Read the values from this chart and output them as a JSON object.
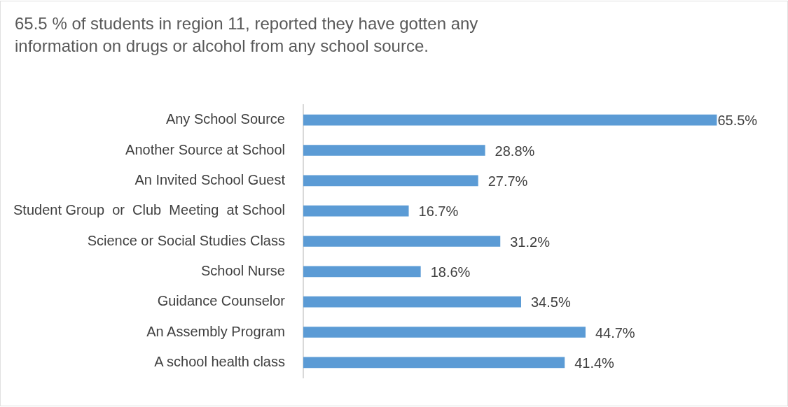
{
  "chart_data": {
    "type": "bar",
    "orientation": "horizontal",
    "title": "65.5 % of students in region 11, reported they have gotten any information on drugs or alcohol from any school source.",
    "categories": [
      "Any School Source",
      "Another Source at School",
      "An Invited School Guest",
      "Student Group  or  Club  Meeting  at School",
      "Science or Social Studies Class",
      "School Nurse",
      "Guidance Counselor",
      "An Assembly Program",
      "A school health class"
    ],
    "values": [
      65.5,
      28.8,
      27.7,
      16.7,
      31.2,
      18.6,
      34.5,
      44.7,
      41.4
    ],
    "value_labels": [
      "65.5%",
      "28.8%",
      "27.7%",
      "16.7%",
      "31.2%",
      "18.6%",
      "34.5%",
      "44.7%",
      "41.4%"
    ],
    "color": "#5b9bd5"
  }
}
